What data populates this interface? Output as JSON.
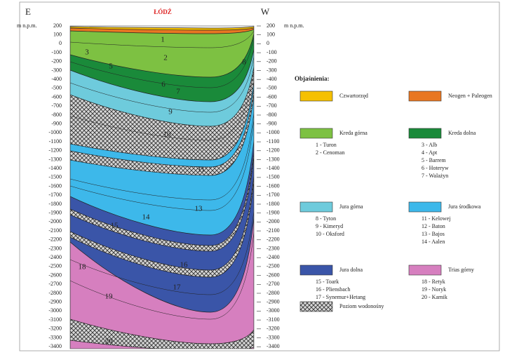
{
  "header": {
    "left_end": "E",
    "right_end": "W",
    "city": "ŁÓDŹ",
    "left_unit": "m n.p.m.",
    "right_unit": "m n.p.m."
  },
  "axis": {
    "ticks": [
      200,
      100,
      0,
      -100,
      -200,
      -300,
      -400,
      -500,
      -600,
      -700,
      -800,
      -900,
      -1000,
      -1100,
      -1200,
      -1300,
      -1400,
      -1500,
      -1600,
      -1700,
      -1800,
      -1900,
      -2000,
      -2100,
      -2200,
      -2300,
      -2400,
      -2500,
      -2600,
      -2700,
      -2800,
      -2900,
      -3000,
      -3100,
      -3200,
      -3300,
      -3400
    ]
  },
  "section_labels": [
    "1",
    "2",
    "3",
    "5",
    "6",
    "7",
    "8",
    "9",
    "10",
    "11",
    "13",
    "14",
    "15",
    "16",
    "17",
    "18",
    "19",
    "20"
  ],
  "legend": {
    "title": "Objaśnienia:",
    "items": [
      {
        "name": "Czwartorzęd",
        "color": "#f5c000",
        "units": []
      },
      {
        "name": "Neogen + Paleogen",
        "color": "#e87722",
        "units": []
      },
      {
        "name": "Kreda górna",
        "color": "#7dc142",
        "units": [
          "1 - Turon",
          "2 - Cenoman"
        ]
      },
      {
        "name": "Kreda dolna",
        "color": "#1a8a3a",
        "units": [
          "3 - Alb",
          "4 - Apt",
          "5 - Barrem",
          "6 - Hoteryw",
          "7 - Walażyn"
        ]
      },
      {
        "name": "Jura górna",
        "color": "#6ecbdc",
        "units": [
          "8 - Tyton",
          "9 - Kimeryd",
          "10 - Oksford"
        ]
      },
      {
        "name": "Jura środkowa",
        "color": "#3db8ea",
        "units": [
          "11 - Kelowej",
          "12 - Baton",
          "13 - Bajos",
          "14 - Aalen"
        ]
      },
      {
        "name": "Jura dolna",
        "color": "#3a55a8",
        "units": [
          "15 - Toark",
          "16 - Pliensbach",
          "17 - Synemur+Hetang"
        ]
      },
      {
        "name": "Trias górny",
        "color": "#d67fbf",
        "units": [
          "18 - Retyk",
          "19 - Noryk",
          "20 - Karnik"
        ]
      },
      {
        "name": "Poziom wodonośny",
        "units": []
      }
    ]
  }
}
